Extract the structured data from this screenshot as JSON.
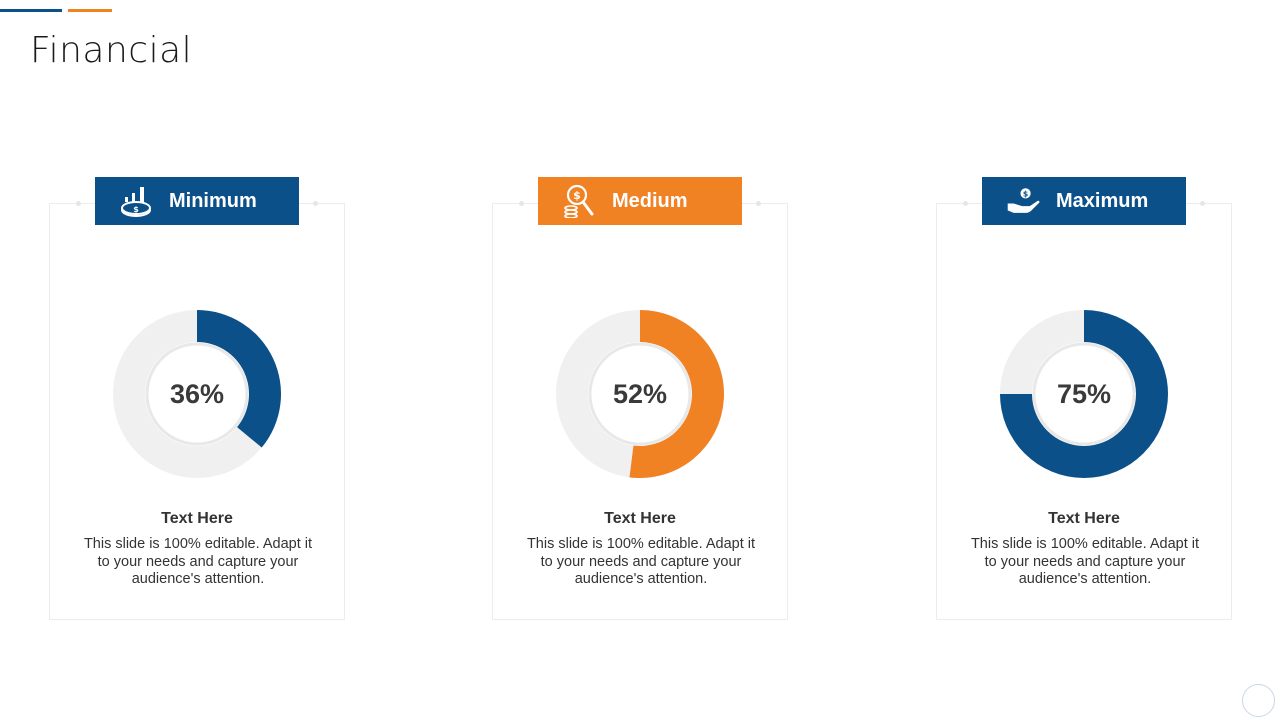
{
  "slide": {
    "title": "Financial"
  },
  "colors": {
    "blue": "#0b5089",
    "orange": "#f08223",
    "track": "#f0f0f0"
  },
  "cards": [
    {
      "label": "Minimum",
      "icon": "bar-chart-coins-icon",
      "color": "#0b5089",
      "value_text": "36%",
      "heading": "Text Here",
      "body": "This slide is 100% editable. Adapt it to your needs and capture your audience's attention."
    },
    {
      "label": "Medium",
      "icon": "magnifier-dollar-coins-icon",
      "color": "#f08223",
      "value_text": "52%",
      "heading": "Text Here",
      "body": "This slide is 100% editable. Adapt it to your needs and capture your audience's attention."
    },
    {
      "label": "Maximum",
      "icon": "hand-dollar-coin-icon",
      "color": "#0b5089",
      "value_text": "75%",
      "heading": "Text Here",
      "body": "This slide is 100% editable. Adapt it to your needs and capture your audience's attention."
    }
  ],
  "chart_data": [
    {
      "type": "pie",
      "categories": [
        "Minimum",
        "Remaining"
      ],
      "values": [
        36,
        64
      ],
      "title": "Minimum"
    },
    {
      "type": "pie",
      "categories": [
        "Medium",
        "Remaining"
      ],
      "values": [
        52,
        48
      ],
      "title": "Medium"
    },
    {
      "type": "pie",
      "categories": [
        "Maximum",
        "Remaining"
      ],
      "values": [
        75,
        25
      ],
      "title": "Maximum"
    }
  ]
}
